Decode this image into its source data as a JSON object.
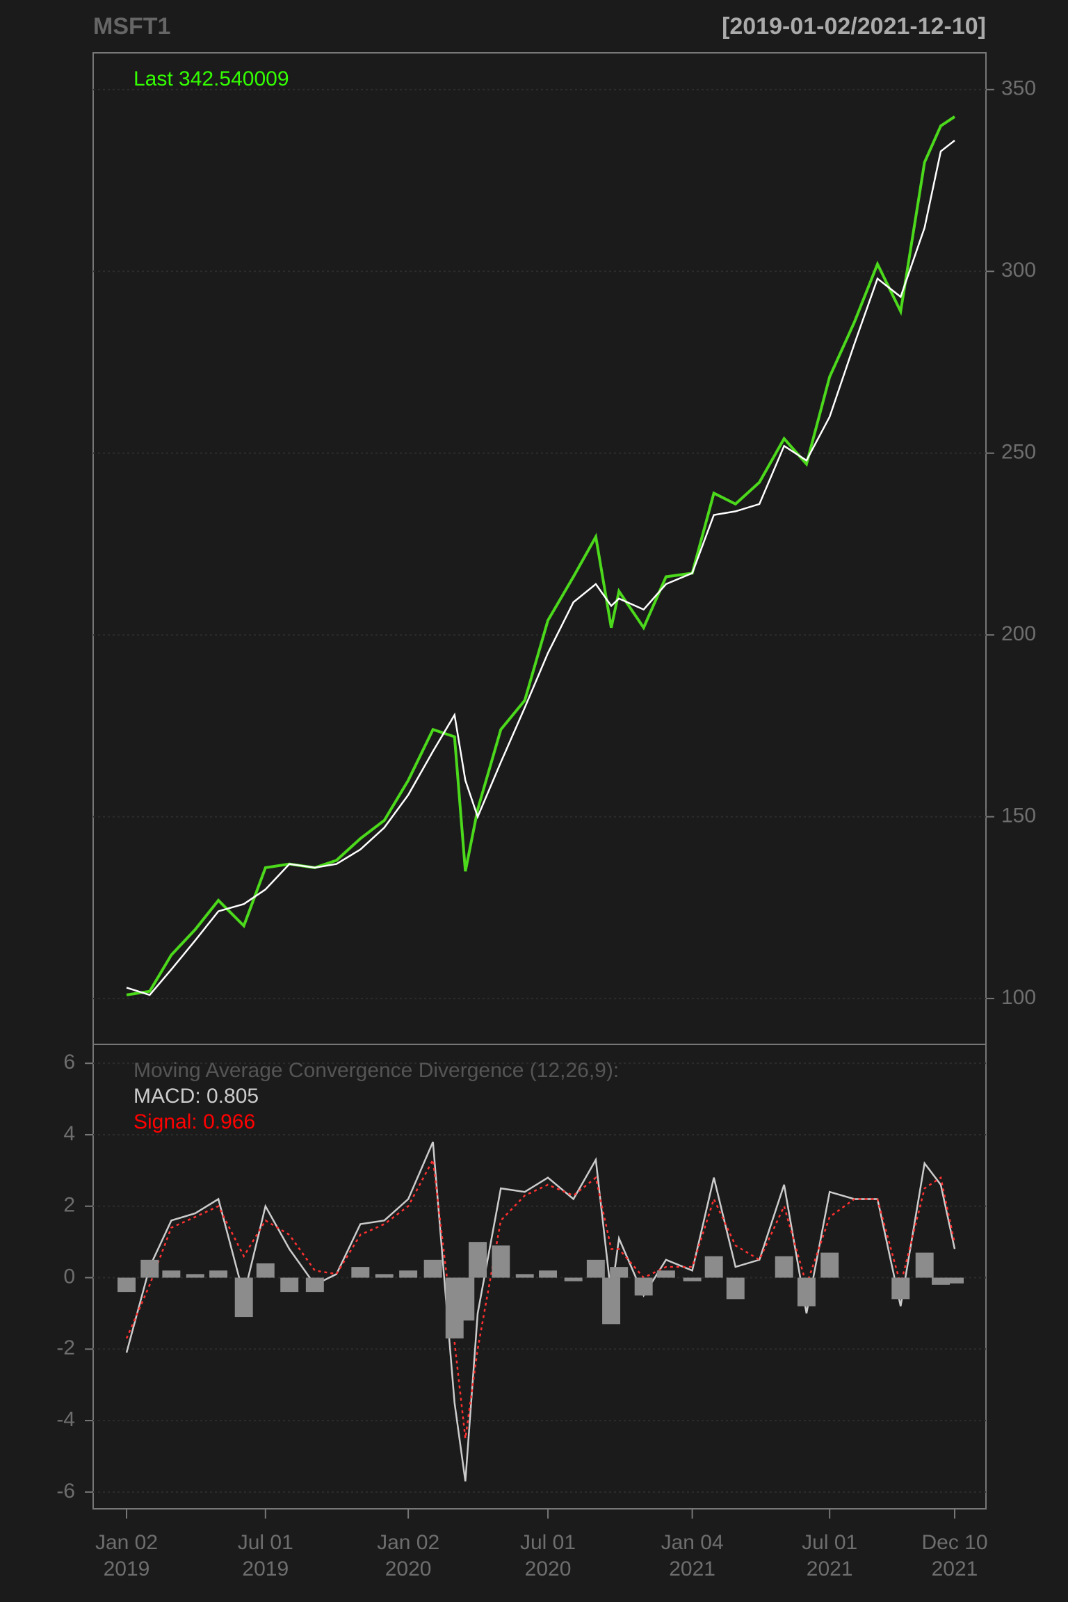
{
  "chart_data": [
    {
      "type": "line",
      "title": "MSFT1",
      "subtitle": "[2019-01-02/2021-12-10]",
      "annotations": [
        {
          "text": "Last 342.540009",
          "color": "#33ff00"
        }
      ],
      "x": [
        "2019-01-02",
        "2019-02-01",
        "2019-03-01",
        "2019-04-01",
        "2019-05-01",
        "2019-06-03",
        "2019-07-01",
        "2019-08-01",
        "2019-09-03",
        "2019-10-01",
        "2019-11-01",
        "2019-12-02",
        "2020-01-02",
        "2020-02-03",
        "2020-03-02",
        "2020-03-16",
        "2020-04-01",
        "2020-05-01",
        "2020-06-01",
        "2020-07-01",
        "2020-08-03",
        "2020-09-01",
        "2020-09-21",
        "2020-10-01",
        "2020-11-02",
        "2020-12-01",
        "2021-01-04",
        "2021-02-01",
        "2021-03-01",
        "2021-04-01",
        "2021-05-03",
        "2021-06-01",
        "2021-07-01",
        "2021-08-02",
        "2021-09-01",
        "2021-10-01",
        "2021-11-01",
        "2021-11-22",
        "2021-12-10"
      ],
      "series": [
        {
          "color": "#4cd91c",
          "values": [
            101,
            102,
            112,
            119,
            127,
            120,
            136,
            137,
            136,
            138,
            144,
            149,
            160,
            174,
            172,
            135,
            152,
            174,
            182,
            204,
            216,
            227,
            202,
            212,
            202,
            216,
            217,
            239,
            236,
            242,
            254,
            247,
            271,
            286,
            302,
            289,
            330,
            340,
            342.54
          ]
        },
        {
          "color": "#ffffff",
          "values": [
            103,
            101,
            108,
            116,
            124,
            126,
            130,
            137,
            136,
            137,
            141,
            147,
            156,
            168,
            178,
            160,
            150,
            165,
            180,
            195,
            209,
            214,
            208,
            210,
            207,
            214,
            217,
            233,
            234,
            236,
            252,
            248,
            260,
            280,
            298,
            293,
            312,
            333,
            336
          ]
        }
      ],
      "xlim": [
        "2019-01-02",
        "2021-12-10"
      ],
      "ylim": [
        87.4,
        360.1
      ],
      "yticks": [
        100,
        150,
        200,
        250,
        300,
        350
      ],
      "grid": true
    },
    {
      "type": "macd",
      "annotations": [
        {
          "text": "Moving Average Convergence Divergence (12,26,9):",
          "color": "#555555"
        },
        {
          "text": "MACD: 0.805",
          "color": "#cccccc"
        },
        {
          "text": "Signal: 0.966",
          "color": "#ff0000"
        }
      ],
      "x": [
        "2019-01-02",
        "2019-02-01",
        "2019-03-01",
        "2019-04-01",
        "2019-05-01",
        "2019-06-03",
        "2019-07-01",
        "2019-08-01",
        "2019-09-03",
        "2019-10-01",
        "2019-11-01",
        "2019-12-02",
        "2020-01-02",
        "2020-02-03",
        "2020-03-02",
        "2020-03-16",
        "2020-04-01",
        "2020-05-01",
        "2020-06-01",
        "2020-07-01",
        "2020-08-03",
        "2020-09-01",
        "2020-09-21",
        "2020-10-01",
        "2020-11-02",
        "2020-12-01",
        "2021-01-04",
        "2021-02-01",
        "2021-03-01",
        "2021-04-01",
        "2021-05-03",
        "2021-06-01",
        "2021-07-01",
        "2021-08-02",
        "2021-09-01",
        "2021-10-01",
        "2021-11-01",
        "2021-11-22",
        "2021-12-10"
      ],
      "series": [
        {
          "color": "#cccccc",
          "values": [
            -2.1,
            0.3,
            1.6,
            1.8,
            2.2,
            -0.5,
            2.0,
            0.8,
            -0.2,
            0.1,
            1.5,
            1.6,
            2.2,
            3.8,
            -3.5,
            -5.7,
            -1.0,
            2.5,
            2.4,
            2.8,
            2.2,
            3.3,
            -0.5,
            1.1,
            -0.5,
            0.5,
            0.2,
            2.8,
            0.3,
            0.5,
            2.6,
            -1.0,
            2.4,
            2.2,
            2.2,
            -0.8,
            3.2,
            2.6,
            0.805
          ]
        },
        {
          "color": "#ff3030",
          "dash": true,
          "values": [
            -1.7,
            -0.2,
            1.4,
            1.7,
            2.0,
            0.6,
            1.6,
            1.2,
            0.2,
            0.1,
            1.2,
            1.5,
            2.0,
            3.3,
            -1.8,
            -4.5,
            -2.0,
            1.6,
            2.3,
            2.6,
            2.3,
            2.8,
            0.8,
            0.8,
            0.0,
            0.3,
            0.3,
            2.2,
            0.9,
            0.5,
            2.0,
            -0.2,
            1.7,
            2.2,
            2.2,
            -0.2,
            2.5,
            2.8,
            0.966
          ]
        },
        {
          "color": "#8c8c8c",
          "bars": true,
          "values": [
            -0.4,
            0.5,
            0.2,
            0.1,
            0.2,
            -1.1,
            0.4,
            -0.4,
            -0.4,
            0.0,
            0.3,
            0.1,
            0.2,
            0.5,
            -1.7,
            -1.2,
            1.0,
            0.9,
            0.1,
            0.2,
            -0.1,
            0.5,
            -1.3,
            0.3,
            -0.5,
            0.2,
            -0.1,
            0.6,
            -0.6,
            0.0,
            0.6,
            -0.8,
            0.7,
            0.0,
            0.0,
            -0.6,
            0.7,
            -0.2,
            -0.161
          ]
        }
      ],
      "xlim": [
        "2019-01-02",
        "2021-12-10"
      ],
      "xticks": [
        {
          "value": "2019-01-02",
          "label": "Jan 02\n2019"
        },
        {
          "value": "2019-07-01",
          "label": "Jul 01\n2019"
        },
        {
          "value": "2020-01-02",
          "label": "Jan 02\n2020"
        },
        {
          "value": "2020-07-01",
          "label": "Jul 01\n2020"
        },
        {
          "value": "2021-01-04",
          "label": "Jan 04\n2021"
        },
        {
          "value": "2021-07-01",
          "label": "Jul 01\n2021"
        },
        {
          "value": "2021-12-10",
          "label": "Dec 10\n2021"
        }
      ],
      "ylim": [
        -6.47,
        6.53
      ],
      "yticks": [
        -6,
        -4,
        -2,
        0,
        2,
        4,
        6
      ],
      "grid": true
    }
  ]
}
